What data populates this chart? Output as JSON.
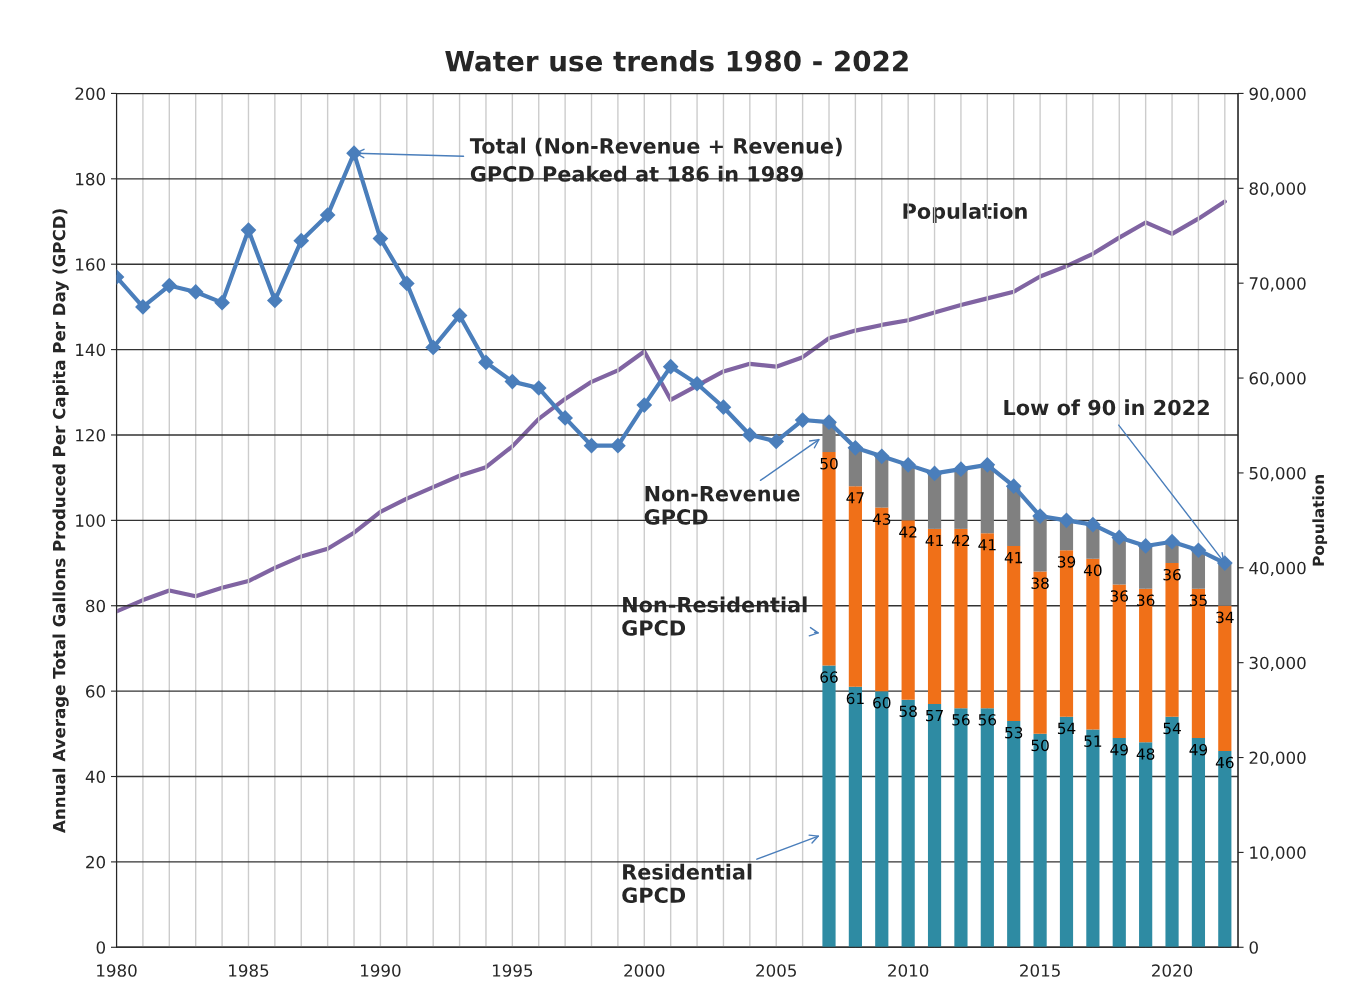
{
  "chart_data": {
    "type": "bar",
    "title": "Water use trends 1980 - 2022",
    "ylabel": "Annual Average Total Gallons Produced Per Capita Per Day (GPCD)",
    "y2label": "Population",
    "stacked": true,
    "grid": true,
    "legend": false,
    "xlim": [
      1980,
      2022.5
    ],
    "xticks": [
      1980,
      {
        "value": 1981,
        "label": null
      },
      {
        "value": 1982,
        "label": null
      },
      {
        "value": 1983,
        "label": null
      },
      {
        "value": 1984,
        "label": null
      },
      1985,
      {
        "value": 1986,
        "label": null
      },
      {
        "value": 1987,
        "label": null
      },
      {
        "value": 1988,
        "label": null
      },
      {
        "value": 1989,
        "label": null
      },
      1990,
      {
        "value": 1991,
        "label": null
      },
      {
        "value": 1992,
        "label": null
      },
      {
        "value": 1993,
        "label": null
      },
      {
        "value": 1994,
        "label": null
      },
      1995,
      {
        "value": 1996,
        "label": null
      },
      {
        "value": 1997,
        "label": null
      },
      {
        "value": 1998,
        "label": null
      },
      {
        "value": 1999,
        "label": null
      },
      2000,
      {
        "value": 2001,
        "label": null
      },
      {
        "value": 2002,
        "label": null
      },
      {
        "value": 2003,
        "label": null
      },
      {
        "value": 2004,
        "label": null
      },
      2005,
      {
        "value": 2006,
        "label": null
      },
      {
        "value": 2007,
        "label": null
      },
      {
        "value": 2008,
        "label": null
      },
      {
        "value": 2009,
        "label": null
      },
      2010,
      {
        "value": 2011,
        "label": null
      },
      {
        "value": 2012,
        "label": null
      },
      {
        "value": 2013,
        "label": null
      },
      {
        "value": 2014,
        "label": null
      },
      2015,
      {
        "value": 2016,
        "label": null
      },
      {
        "value": 2017,
        "label": null
      },
      {
        "value": 2018,
        "label": null
      },
      {
        "value": 2019,
        "label": null
      },
      2020,
      {
        "value": 2021,
        "label": null
      },
      {
        "value": 2022,
        "label": null
      }
    ],
    "ylim": [
      0,
      200
    ],
    "yticks": [
      0,
      20,
      40,
      60,
      80,
      100,
      120,
      140,
      160,
      180,
      200
    ],
    "y2lim": [
      0,
      90000
    ],
    "y2ticks": [
      0,
      {
        "value": 10000,
        "label": "10,000"
      },
      {
        "value": 20000,
        "label": "20,000"
      },
      {
        "value": 30000,
        "label": "30,000"
      },
      {
        "value": 40000,
        "label": "40,000"
      },
      {
        "value": 50000,
        "label": "50,000"
      },
      {
        "value": 60000,
        "label": "60,000"
      },
      {
        "value": 70000,
        "label": "70,000"
      },
      {
        "value": 80000,
        "label": "80,000"
      },
      {
        "value": 90000,
        "label": "90,000"
      }
    ],
    "series": [
      {
        "name": "Residential GPCD",
        "color": "#2e8ba3",
        "x": [
          2007,
          2008,
          2009,
          2010,
          2011,
          2012,
          2013,
          2014,
          2015,
          2016,
          2017,
          2018,
          2019,
          2020,
          2021,
          2022
        ],
        "values": [
          66,
          61,
          60,
          58,
          57,
          56,
          56,
          53,
          50,
          54,
          51,
          49,
          48,
          54,
          49,
          46
        ],
        "value_labels": [
          "66",
          "61",
          "60",
          "58",
          "57",
          "56",
          "56",
          "53",
          "50",
          "54",
          "51",
          "49",
          "48",
          "54",
          "49",
          "46"
        ]
      },
      {
        "name": "Non-Residential GPCD",
        "color": "#f07018",
        "x": [
          2007,
          2008,
          2009,
          2010,
          2011,
          2012,
          2013,
          2014,
          2015,
          2016,
          2017,
          2018,
          2019,
          2020,
          2021,
          2022
        ],
        "values": [
          50,
          47,
          43,
          42,
          41,
          42,
          41,
          41,
          38,
          39,
          40,
          36,
          36,
          36,
          35,
          34
        ],
        "value_labels": [
          "50",
          "47",
          "43",
          "42",
          "41",
          "42",
          "41",
          "41",
          "38",
          "39",
          "40",
          "36",
          "36",
          "36",
          "35",
          "34"
        ]
      },
      {
        "name": "Non-Revenue GPCD",
        "color": "#808080",
        "x": [
          2007,
          2008,
          2009,
          2010,
          2011,
          2012,
          2013,
          2014,
          2015,
          2016,
          2017,
          2018,
          2019,
          2020,
          2021,
          2022
        ],
        "values": [
          7,
          9,
          12,
          13,
          13,
          14,
          16,
          14,
          13,
          7,
          8,
          11,
          10,
          5,
          9,
          10
        ]
      },
      {
        "type": "line",
        "color": "#4a7ebb",
        "marker": "diamond",
        "x": [
          1980,
          1981,
          1982,
          1983,
          1984,
          1985,
          1986,
          1987,
          1988,
          1989,
          1990,
          1991,
          1992,
          1993,
          1994,
          1995,
          1996,
          1997,
          1998,
          1999,
          2000,
          2001,
          2002,
          2003,
          2004,
          2005,
          2006,
          2007,
          2008,
          2009,
          2010,
          2011,
          2012,
          2013,
          2014,
          2015,
          2016,
          2017,
          2018,
          2019,
          2020,
          2021,
          2022
        ],
        "values": [
          157,
          150,
          155,
          153.5,
          151,
          168,
          151.5,
          165.5,
          171.5,
          186,
          166,
          155.5,
          140.5,
          148,
          137,
          132.5,
          131,
          124,
          117.5,
          117.5,
          127,
          136,
          132,
          126.5,
          120,
          118.5,
          123.5,
          123,
          117,
          115,
          113,
          111,
          112,
          113,
          108,
          101,
          100,
          99,
          96,
          94,
          95,
          93,
          90
        ]
      },
      {
        "name": "Population",
        "type": "line",
        "axis": "y2",
        "color": "#8064a2",
        "x": [
          1980,
          1981,
          1982,
          1983,
          1984,
          1985,
          1986,
          1987,
          1988,
          1989,
          1990,
          1991,
          1992,
          1993,
          1994,
          1995,
          1996,
          1997,
          1998,
          1999,
          2000,
          2001,
          2002,
          2003,
          2004,
          2005,
          2006,
          2007,
          2008,
          2009,
          2010,
          2011,
          2012,
          2013,
          2014,
          2015,
          2016,
          2017,
          2018,
          2019,
          2020,
          2021,
          2022
        ],
        "values": [
          35400,
          36600,
          37600,
          37000,
          37900,
          38600,
          40000,
          41200,
          42000,
          43700,
          45900,
          47300,
          48500,
          49700,
          50600,
          52800,
          55700,
          57800,
          59600,
          60800,
          62800,
          57700,
          59200,
          60700,
          61500,
          61200,
          62200,
          64200,
          65000,
          65600,
          66100,
          66900,
          67700,
          68400,
          69100,
          70700,
          71800,
          73100,
          74800,
          76400,
          75200,
          76800,
          78600
        ]
      }
    ],
    "annotations": [
      {
        "text": "Total (Non-Revenue + Revenue)\nGPCD Peaked at 186 in 1989",
        "x": 1989,
        "y": 186
      },
      {
        "text": "Low of 90 in 2022",
        "x": 2022,
        "y": 90
      }
    ]
  }
}
